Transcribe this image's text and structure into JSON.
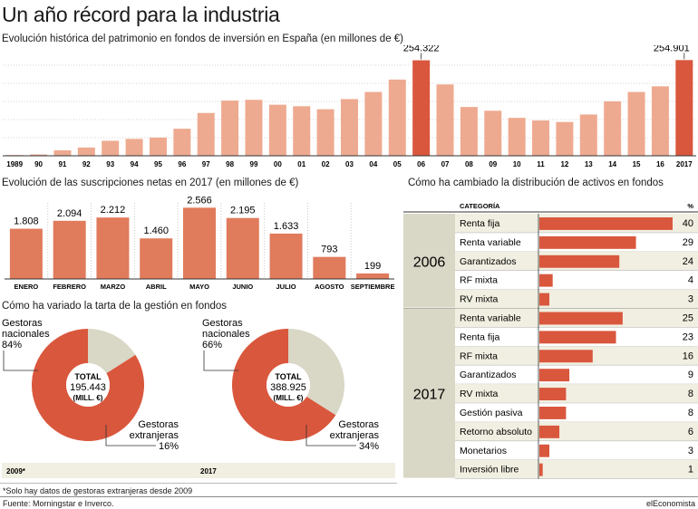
{
  "title": "Un año récord para la industria",
  "colors": {
    "bar": "#eeaa90",
    "bar_hi": "#d9573d",
    "bar_mid": "#e07b5c",
    "grey": "#d9d7c6",
    "light": "#f1efe1"
  },
  "chart_data": [
    {
      "type": "bar",
      "title": "Evolución histórica del patrimonio en fondos de inversión en España (en millones de €)",
      "categories": [
        "1989",
        "90",
        "91",
        "92",
        "93",
        "94",
        "95",
        "96",
        "97",
        "98",
        "99",
        "00",
        "01",
        "02",
        "03",
        "04",
        "05",
        "06",
        "07",
        "08",
        "09",
        "10",
        "11",
        "12",
        "13",
        "14",
        "15",
        "16",
        "2017"
      ],
      "values": [
        2000,
        3500,
        14500,
        22000,
        40000,
        45000,
        48500,
        72000,
        114000,
        147000,
        149000,
        136000,
        132000,
        124000,
        151000,
        170000,
        203000,
        254322,
        190000,
        130000,
        120000,
        101000,
        94000,
        90000,
        110000,
        145000,
        170000,
        185000,
        254901
      ],
      "labels": {
        "17": "254.322",
        "28": "254.901"
      },
      "highlight": [
        17,
        28
      ],
      "ylim": [
        0,
        275000
      ]
    },
    {
      "type": "bar",
      "title": "Evolución de las suscripciones netas en 2017 (en millones de €)",
      "categories": [
        "ENERO",
        "FEBRERO",
        "MARZO",
        "ABRIL",
        "MAYO",
        "JUNIO",
        "JULIO",
        "AGOSTO",
        "SEPTIEMBRE"
      ],
      "values": [
        1808,
        2094,
        2212,
        1460,
        2566,
        2195,
        1633,
        793,
        199
      ],
      "value_labels": [
        "1.808",
        "2.094",
        "2.212",
        "1.460",
        "2.566",
        "2.195",
        "1.633",
        "793",
        "199"
      ],
      "ylim": [
        0,
        3000
      ]
    },
    {
      "type": "pie",
      "title": "Cómo ha variado la tarta de la gestión en fondos",
      "charts": [
        {
          "year": "2009*",
          "total_label": "TOTAL",
          "total": "195.443",
          "unit": "(MILL. €)",
          "slices": [
            {
              "name": "Gestoras nacionales",
              "value": 84,
              "label": "84%"
            },
            {
              "name": "Gestoras extranjeras",
              "value": 16,
              "label": "16%"
            }
          ]
        },
        {
          "year": "2017",
          "total_label": "TOTAL",
          "total": "388.925",
          "unit": "(MILL. €)",
          "slices": [
            {
              "name": "Gestoras nacionales",
              "value": 66,
              "label": "66%"
            },
            {
              "name": "Gestoras extranjeras",
              "value": 34,
              "label": "34%"
            }
          ]
        }
      ]
    },
    {
      "type": "bar",
      "title": "Cómo ha cambiado la distribución de activos en fondos",
      "header_category": "CATEGORÍA",
      "header_pct": "%",
      "groups": [
        {
          "year": "2006",
          "items": [
            {
              "name": "Renta fija",
              "value": 40
            },
            {
              "name": "Renta variable",
              "value": 29
            },
            {
              "name": "Garantizados",
              "value": 24
            },
            {
              "name": "RF mixta",
              "value": 4
            },
            {
              "name": "RV mixta",
              "value": 3
            }
          ]
        },
        {
          "year": "2017",
          "items": [
            {
              "name": "Renta variable",
              "value": 25
            },
            {
              "name": "Renta fija",
              "value": 23
            },
            {
              "name": "RF mixta",
              "value": 16
            },
            {
              "name": "Garantizados",
              "value": 9
            },
            {
              "name": "RV mixta",
              "value": 8
            },
            {
              "name": "Gestión pasiva",
              "value": 8
            },
            {
              "name": "Retorno absoluto",
              "value": 6
            },
            {
              "name": "Monetarios",
              "value": 3
            },
            {
              "name": "Inversión libre",
              "value": 1
            }
          ]
        }
      ],
      "xlim": [
        0,
        40
      ]
    }
  ],
  "footnote": "*Solo hay datos de gestoras extranjeras desde 2009",
  "source": "Fuente: Morningstar e Inverco.",
  "brand": "elEconomista"
}
